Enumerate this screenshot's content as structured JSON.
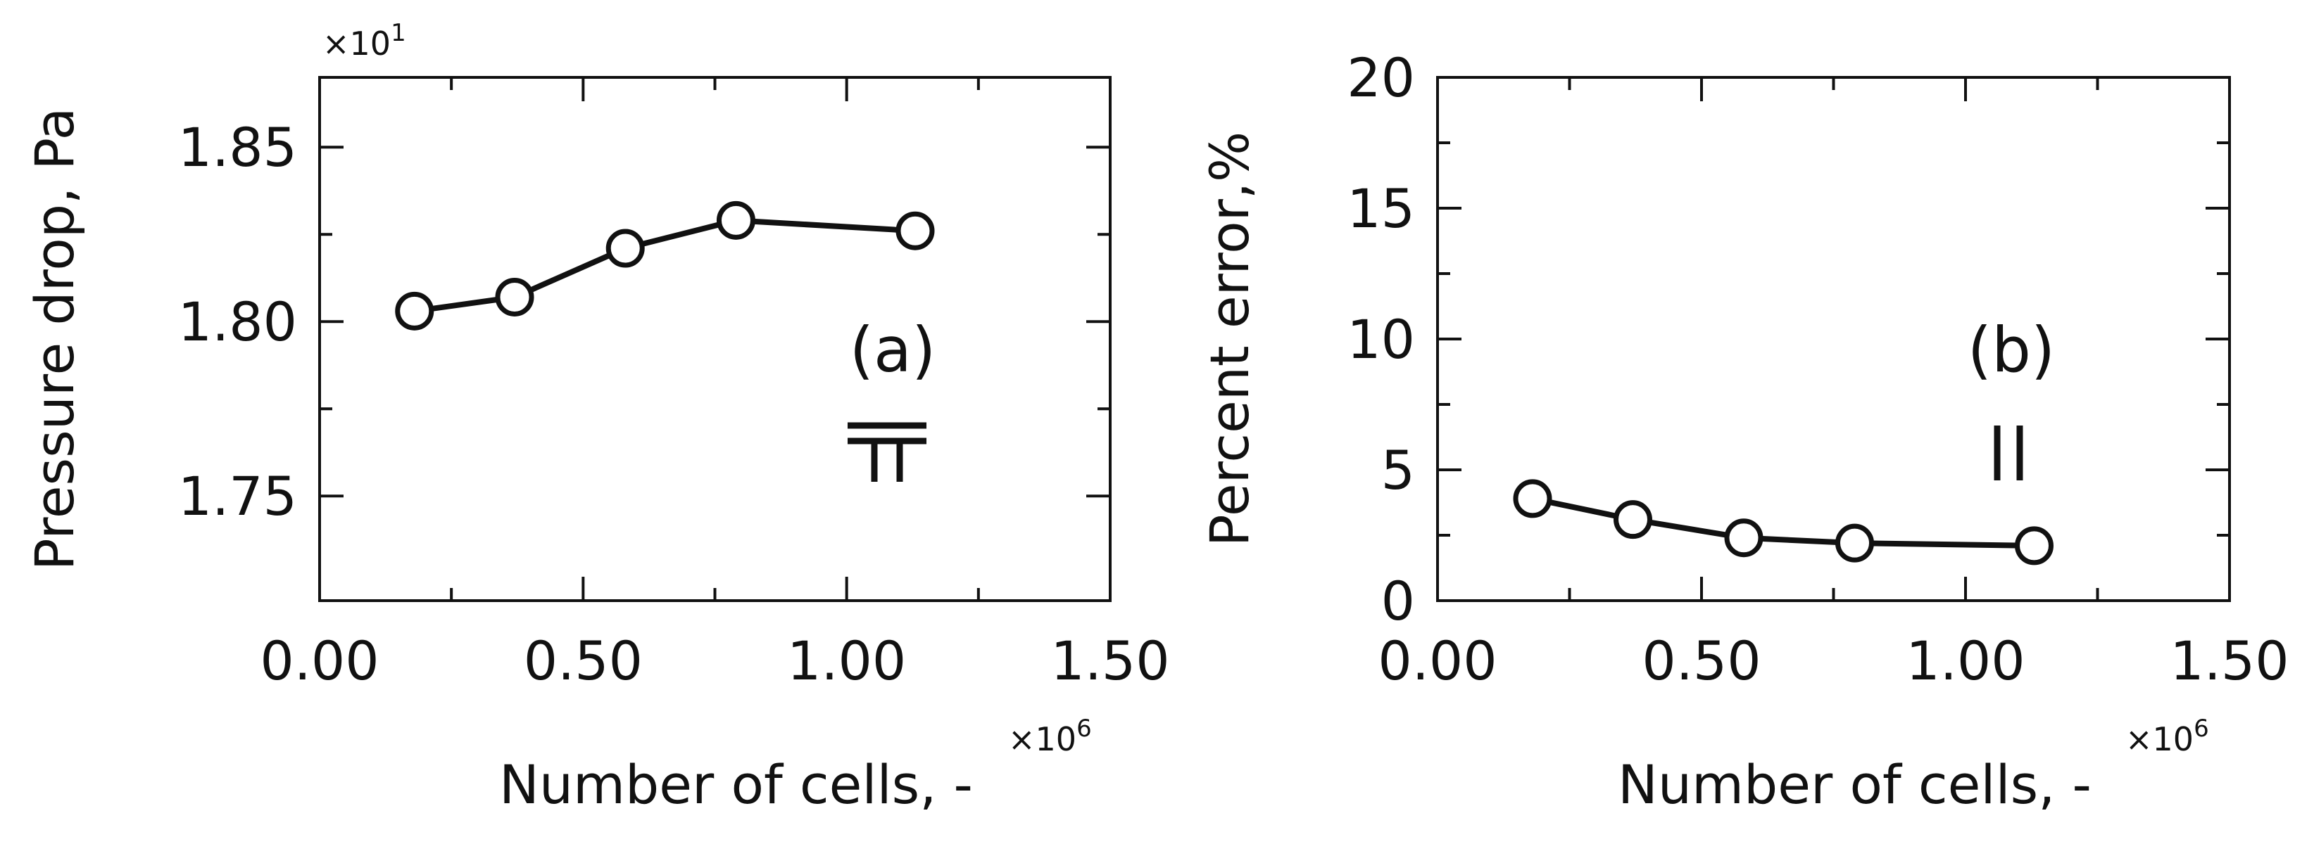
{
  "chart_data": [
    {
      "type": "line",
      "panel_label": "(a)",
      "xlabel": "Number of cells, -",
      "ylabel": "Pressure drop, Pa",
      "x_multiplier": "×10",
      "x_multiplier_exp": "6",
      "y_multiplier": "×10",
      "y_multiplier_exp": "1",
      "xlim": [
        0,
        1.5
      ],
      "ylim": [
        1.72,
        1.87
      ],
      "xticks": [
        0.0,
        0.5,
        1.0,
        1.5
      ],
      "xtick_labels": [
        "0.00",
        "0.50",
        "1.00",
        "1.50"
      ],
      "xminor": [
        0.25,
        0.75,
        1.25
      ],
      "yticks": [
        1.75,
        1.8,
        1.85
      ],
      "ytick_labels": [
        "1.75",
        "1.80",
        "1.85"
      ],
      "yminor": [
        1.775,
        1.825
      ],
      "x": [
        0.18,
        0.37,
        0.58,
        0.79,
        1.13
      ],
      "y": [
        1.803,
        1.807,
        1.821,
        1.829,
        1.826
      ],
      "annotation_symbol": "tee",
      "grid": false
    },
    {
      "type": "line",
      "panel_label": "(b)",
      "xlabel": "Number of cells, -",
      "ylabel": "Percent error,%",
      "x_multiplier": "×10",
      "x_multiplier_exp": "6",
      "xlim": [
        0,
        1.5
      ],
      "ylim": [
        0,
        20
      ],
      "xticks": [
        0.0,
        0.5,
        1.0,
        1.5
      ],
      "xtick_labels": [
        "0.00",
        "0.50",
        "1.00",
        "1.50"
      ],
      "xminor": [
        0.25,
        0.75,
        1.25
      ],
      "yticks": [
        0,
        5,
        10,
        15,
        20
      ],
      "ytick_labels": [
        "0",
        "5",
        "10",
        "15",
        "20"
      ],
      "yminor": [
        2.5,
        7.5,
        12.5,
        17.5
      ],
      "x": [
        0.18,
        0.37,
        0.58,
        0.79,
        1.13
      ],
      "y": [
        3.9,
        3.1,
        2.4,
        2.2,
        2.1
      ],
      "annotation_symbol": "parallel",
      "grid": false
    }
  ]
}
